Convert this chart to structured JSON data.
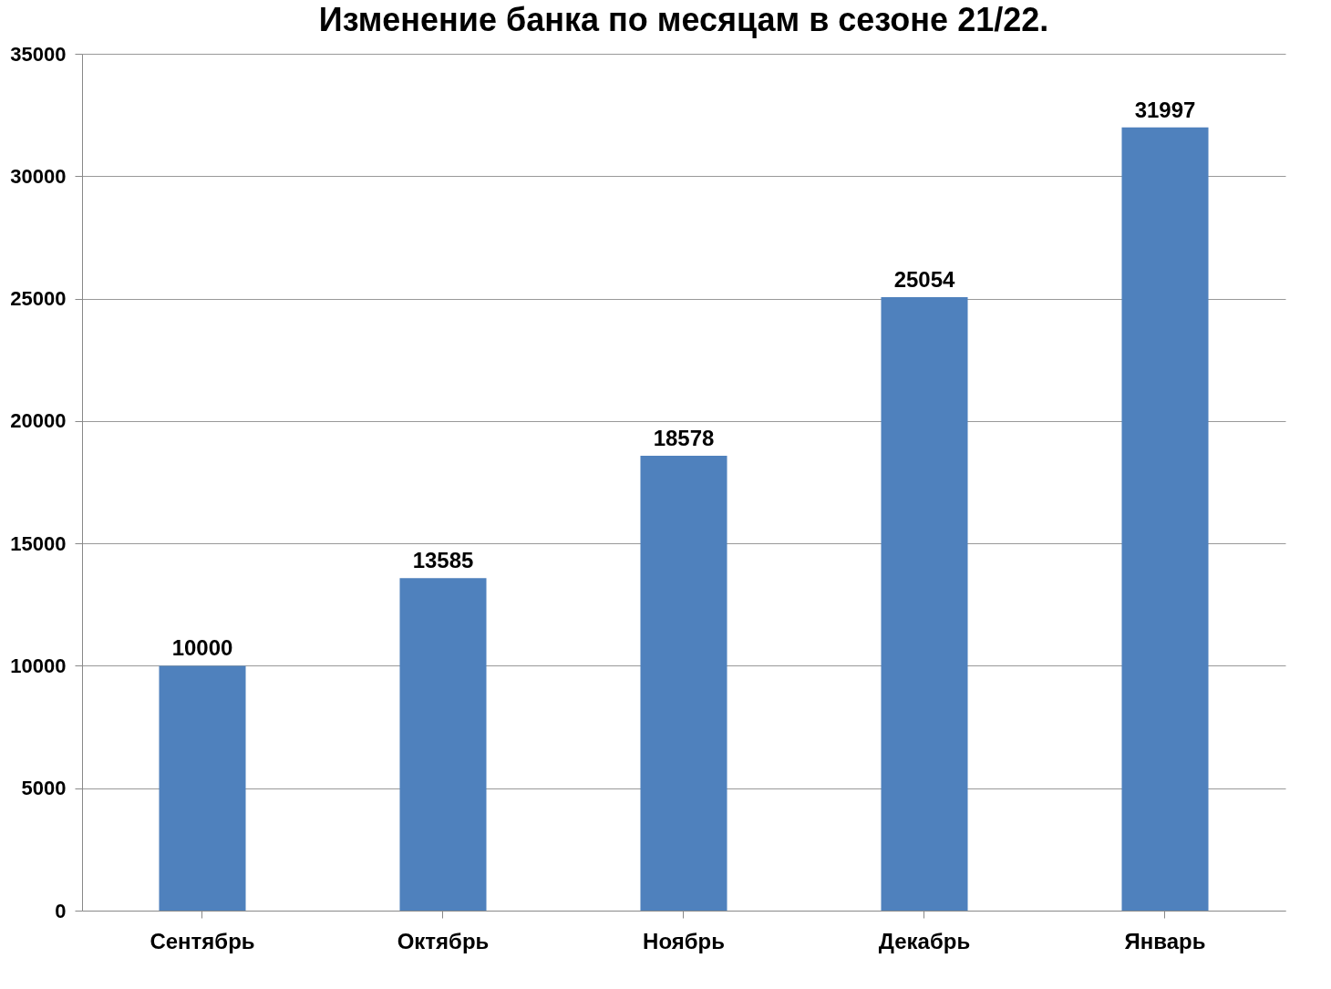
{
  "chart_data": {
    "type": "bar",
    "title": "Изменение банка по месяцам в сезоне 21/22.",
    "categories": [
      "Сентябрь",
      "Октябрь",
      "Ноябрь",
      "Декабрь",
      "Январь"
    ],
    "values": [
      10000,
      13585,
      18578,
      25054,
      31997
    ],
    "color": "#4f81bd",
    "ylim": [
      0,
      35000
    ],
    "yticks": [
      0,
      5000,
      10000,
      15000,
      20000,
      25000,
      30000,
      35000
    ],
    "grid": "y",
    "data_labels": true
  }
}
